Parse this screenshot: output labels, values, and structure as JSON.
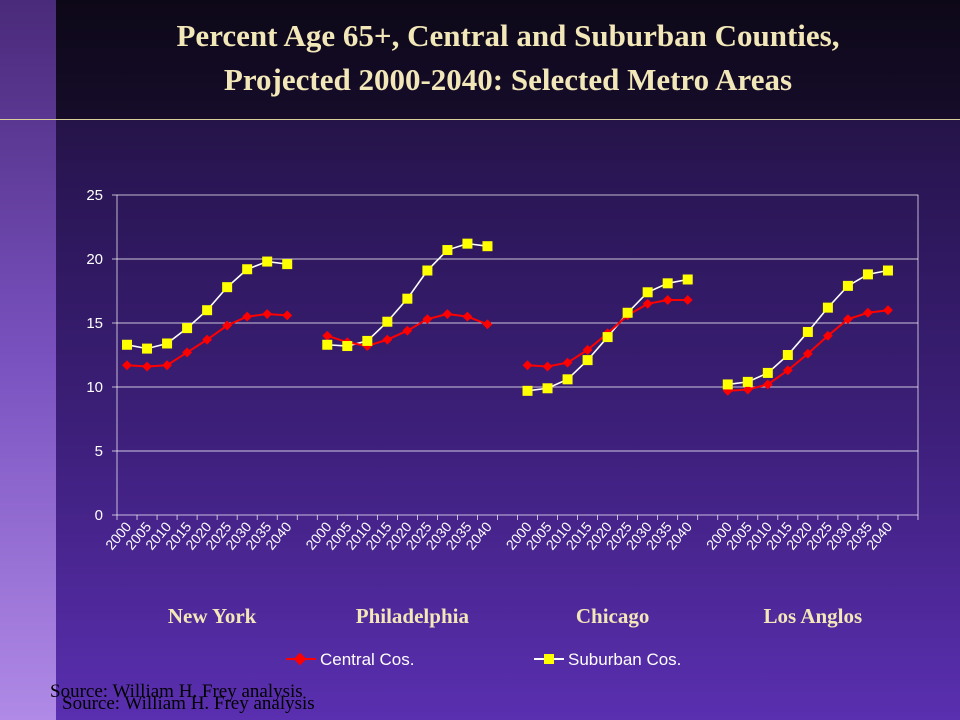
{
  "slide": {
    "title_line1": "Percent Age 65+,  Central and Suburban Counties,",
    "title_line2": "Projected 2000-2040: Selected Metro Areas",
    "source": "Source: William H. Frey analysis",
    "source_duplicate": "Source: William H. Frey analysis"
  },
  "colors": {
    "central": "#ff0000",
    "suburban": "#ffff00",
    "suburban_line": "#ffffff",
    "grid": "#ffffff",
    "title": "#f2e7b8"
  },
  "chart_data": {
    "type": "line",
    "title": "",
    "xlabel": "",
    "ylabel": "",
    "ylim": [
      0,
      25
    ],
    "yticks": [
      0,
      5,
      10,
      15,
      20,
      25
    ],
    "grid": true,
    "legend_position": "bottom",
    "years": [
      "2000",
      "2005",
      "2010",
      "2015",
      "2020",
      "2025",
      "2030",
      "2035",
      "2040"
    ],
    "groups": [
      {
        "name": "New York",
        "central": [
          11.7,
          11.6,
          11.7,
          12.7,
          13.7,
          14.8,
          15.5,
          15.7,
          15.6
        ],
        "suburban": [
          13.3,
          13.0,
          13.4,
          14.6,
          16.0,
          17.8,
          19.2,
          19.8,
          19.6
        ]
      },
      {
        "name": "Philadelphia",
        "central": [
          14.0,
          13.5,
          13.2,
          13.7,
          14.4,
          15.3,
          15.7,
          15.5,
          14.9
        ],
        "suburban": [
          13.3,
          13.2,
          13.6,
          15.1,
          16.9,
          19.1,
          20.7,
          21.2,
          21.0
        ]
      },
      {
        "name": "Chicago",
        "central": [
          11.7,
          11.6,
          11.9,
          12.9,
          14.2,
          15.6,
          16.5,
          16.8,
          16.8
        ],
        "suburban": [
          9.7,
          9.9,
          10.6,
          12.1,
          13.9,
          15.8,
          17.4,
          18.1,
          18.4
        ]
      },
      {
        "name": "Los Anglos",
        "central": [
          9.7,
          9.8,
          10.2,
          11.3,
          12.6,
          14.0,
          15.3,
          15.8,
          16.0
        ],
        "suburban": [
          10.2,
          10.4,
          11.1,
          12.5,
          14.3,
          16.2,
          17.9,
          18.8,
          19.1
        ]
      }
    ],
    "series": [
      {
        "name": "Central Cos.",
        "key": "central"
      },
      {
        "name": "Suburban Cos.",
        "key": "suburban"
      }
    ]
  }
}
